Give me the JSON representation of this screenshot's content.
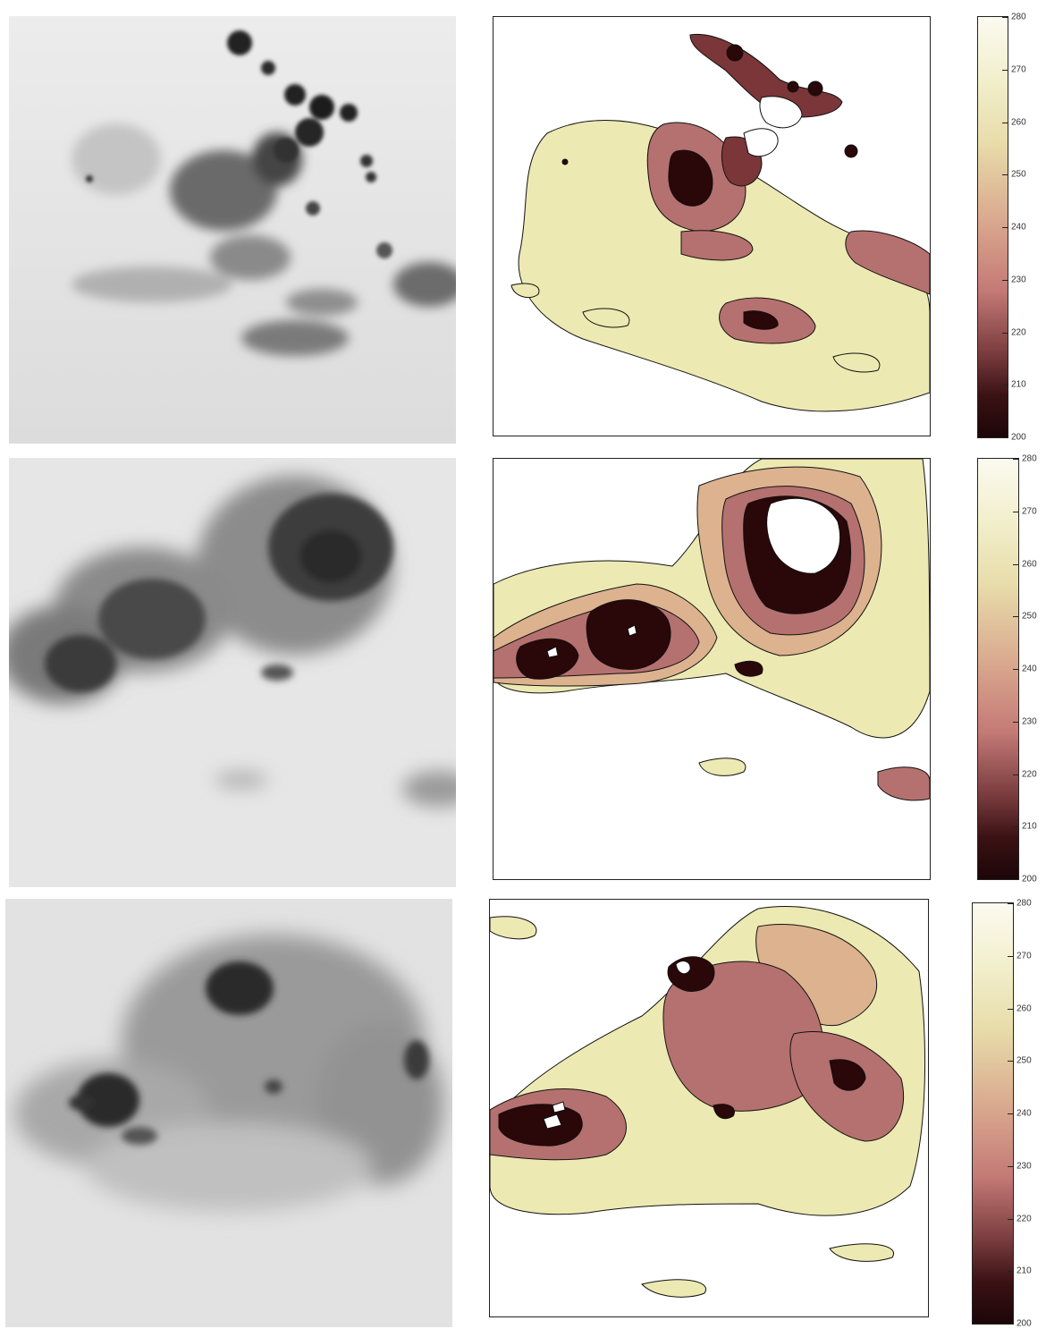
{
  "panels": [
    {
      "id": "row-1",
      "colorbar_ticks": [
        "280",
        "270",
        "260",
        "250",
        "240",
        "230",
        "220",
        "210",
        "200"
      ]
    },
    {
      "id": "row-2",
      "colorbar_ticks": [
        "280",
        "270",
        "260",
        "250",
        "240",
        "230",
        "220",
        "210",
        "200"
      ]
    },
    {
      "id": "row-3",
      "colorbar_ticks": [
        "280",
        "270",
        "260",
        "250",
        "240",
        "230",
        "220",
        "210",
        "200"
      ]
    }
  ],
  "colors": {
    "pale_yellow": "#ece9b2",
    "tan": "#dcb28f",
    "rose": "#b5716f",
    "maroon": "#7a3638",
    "dark": "#2a0708"
  }
}
